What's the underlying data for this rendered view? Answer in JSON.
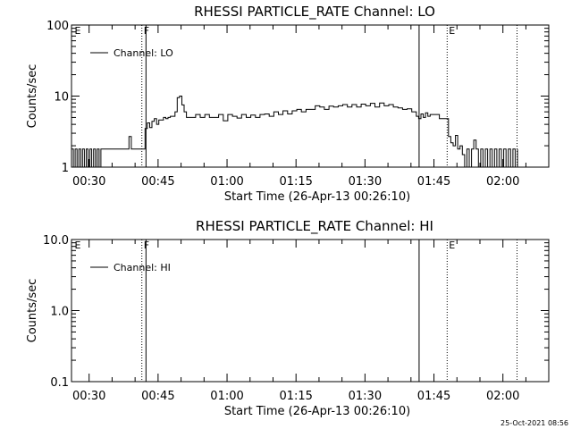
{
  "chart_data": [
    {
      "type": "line",
      "title": "RHESSI PARTICLE_RATE Channel: LO",
      "xlabel": "Start Time (26-Apr-13 00:26:10)",
      "ylabel": "Counts/sec",
      "yscale": "log",
      "ylim": [
        1,
        100
      ],
      "y_ticks": [
        "1",
        "10",
        "100"
      ],
      "xlim_minutes_after_start": [
        0,
        103.8
      ],
      "x_ticks": [
        "00:30",
        "00:45",
        "01:00",
        "01:15",
        "01:30",
        "01:45",
        "02:00"
      ],
      "legend": {
        "position": "top-left",
        "entries": [
          "Channel: LO"
        ]
      },
      "grid": false,
      "markers": [
        {
          "label": "E",
          "x_minutes": 0.3,
          "style": "none"
        },
        {
          "label": "F",
          "x_minutes": 15.3,
          "style": "dotted"
        },
        {
          "label": "",
          "x_minutes": 16.2,
          "style": "solid"
        },
        {
          "label": "",
          "x_minutes": 75.6,
          "style": "solid"
        },
        {
          "label": "E",
          "x_minutes": 81.7,
          "style": "dotted"
        },
        {
          "label": "",
          "x_minutes": 96.9,
          "style": "dotted"
        }
      ],
      "series": [
        {
          "x": [
            0,
            0.4,
            0.8,
            1.2,
            1.6,
            2.0,
            2.4,
            2.8,
            3.2,
            3.6,
            4.0,
            4.4,
            4.8,
            5.2,
            5.6,
            6.0,
            6.4,
            6.8,
            7.2,
            7.6,
            8.0,
            8.4,
            8.8,
            9.2,
            9.6,
            10.0,
            10.5,
            11.0,
            11.5,
            12.0,
            12.5,
            13.0,
            13.5,
            14.0,
            14.5,
            15.0,
            15.5,
            16.0,
            16.5,
            17.0,
            17.5,
            18.0,
            18.5,
            19.0,
            19.5,
            20.0,
            20.5,
            21.0,
            21.5,
            22.0,
            22.5,
            23.0,
            23.5,
            24.0,
            24.5,
            25.0,
            26,
            27,
            28,
            29,
            30,
            31,
            32,
            33,
            34,
            35,
            36,
            37,
            38,
            39,
            40,
            41,
            42,
            43,
            44,
            45,
            46,
            47,
            48,
            49,
            50,
            51,
            52,
            53,
            54,
            55,
            56,
            57,
            58,
            59,
            60,
            61,
            62,
            63,
            64,
            65,
            66,
            67,
            68,
            69,
            70,
            71,
            72,
            73,
            74,
            75,
            75.5,
            76,
            76.5,
            77,
            77.5,
            78,
            78.5,
            79,
            79.5,
            80,
            80.5,
            81,
            81.5,
            82,
            82.5,
            83,
            83.5,
            84,
            84.5,
            85,
            85.5,
            86,
            86.5,
            87,
            87.5,
            88,
            88.5,
            89,
            89.5,
            90,
            90.5,
            91,
            91.5,
            92,
            92.5,
            93,
            93.5,
            94,
            94.5,
            95,
            95.5,
            96,
            96.5,
            97
          ],
          "y": [
            1.8,
            1.0,
            1.8,
            1.0,
            1.8,
            1.0,
            1.8,
            1.0,
            1.8,
            1.0,
            1.8,
            1.0,
            1.8,
            1.0,
            1.8,
            1.0,
            1.8,
            1.8,
            1.8,
            1.8,
            1.8,
            1.8,
            1.8,
            1.8,
            1.8,
            1.8,
            1.8,
            1.8,
            1.8,
            1.8,
            2.7,
            1.8,
            1.8,
            1.8,
            1.8,
            1.8,
            1.8,
            3.5,
            4.2,
            3.6,
            4.4,
            4.8,
            4.0,
            4.6,
            4.6,
            5.0,
            4.8,
            5.0,
            5.2,
            5.2,
            6.0,
            9.5,
            10.0,
            7.5,
            6.0,
            5.0,
            5.0,
            5.5,
            5.0,
            5.5,
            5.0,
            5.0,
            5.5,
            4.5,
            5.5,
            5.2,
            4.9,
            5.5,
            5.0,
            5.4,
            5.0,
            5.5,
            5.6,
            5.2,
            6.0,
            5.5,
            6.2,
            5.6,
            6.2,
            6.5,
            6.0,
            6.5,
            6.5,
            7.3,
            7.0,
            6.5,
            7.2,
            7.0,
            7.3,
            7.6,
            7.0,
            7.6,
            7.0,
            7.7,
            7.3,
            7.9,
            7.0,
            8.0,
            7.3,
            7.6,
            7.0,
            6.8,
            6.5,
            6.6,
            6.0,
            5.2,
            4.8,
            5.6,
            5.0,
            5.8,
            5.2,
            5.5,
            5.5,
            5.5,
            5.5,
            4.8,
            4.8,
            4.8,
            4.8,
            2.7,
            2.2,
            2.0,
            2.8,
            1.8,
            2.0,
            1.5,
            1.0,
            1.8,
            1.0,
            1.8,
            2.4,
            1.8,
            1.0,
            1.8,
            1.0,
            1.8,
            1.0,
            1.8,
            1.0,
            1.8,
            1.0,
            1.8,
            1.0,
            1.8,
            1.0,
            1.8,
            1.0,
            1.8,
            1.0,
            1.8
          ]
        }
      ]
    },
    {
      "type": "line",
      "title": "RHESSI PARTICLE_RATE Channel: HI",
      "xlabel": "Start Time (26-Apr-13 00:26:10)",
      "ylabel": "Counts/sec",
      "yscale": "log",
      "ylim": [
        0.1,
        10
      ],
      "y_ticks": [
        "0.1",
        "1.0",
        "10.0"
      ],
      "xlim_minutes_after_start": [
        0,
        103.8
      ],
      "x_ticks": [
        "00:30",
        "00:45",
        "01:00",
        "01:15",
        "01:30",
        "01:45",
        "02:00"
      ],
      "legend": {
        "position": "top-left",
        "entries": [
          "Channel: HI"
        ]
      },
      "grid": false,
      "markers": [
        {
          "label": "E",
          "x_minutes": 0.3,
          "style": "none"
        },
        {
          "label": "F",
          "x_minutes": 15.3,
          "style": "dotted"
        },
        {
          "label": "",
          "x_minutes": 16.2,
          "style": "solid"
        },
        {
          "label": "",
          "x_minutes": 75.6,
          "style": "solid"
        },
        {
          "label": "E",
          "x_minutes": 81.7,
          "style": "dotted"
        },
        {
          "label": "",
          "x_minutes": 96.9,
          "style": "dotted"
        }
      ],
      "series": []
    }
  ],
  "footer": {
    "timestamp": "25-Oct-2021 08:56"
  }
}
